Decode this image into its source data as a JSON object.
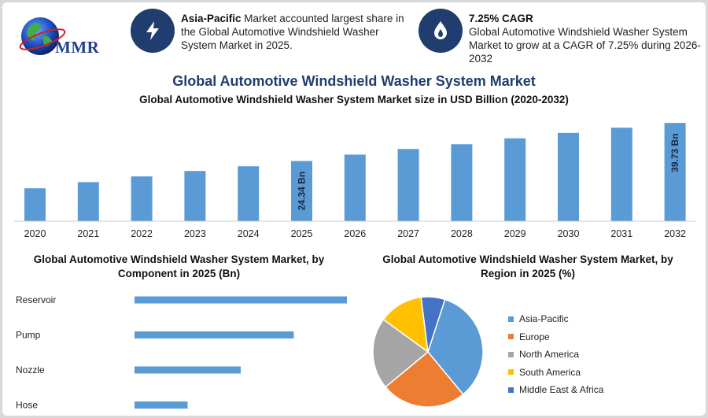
{
  "logo": {
    "text": "MMR"
  },
  "info_left": {
    "bold": "Asia-Pacific",
    "text": " Market accounted largest share in the Global Automotive Windshield Washer System Market in 2025.",
    "icon": "lightning-icon"
  },
  "info_right": {
    "bold": "7.25% CAGR",
    "text": "Global Automotive Windshield Washer System Market to grow at a CAGR of 7.25% during 2026-2032",
    "icon": "flame-drop-icon"
  },
  "colors": {
    "bar": "#5b9bd5",
    "navy": "#1f3d6e"
  },
  "chart_data": [
    {
      "type": "bar",
      "title": "Global Automotive Windshield Washer System Market",
      "subtitle": "Global Automotive Windshield Washer System Market size in USD Billion (2020-2032)",
      "categories": [
        "2020",
        "2021",
        "2022",
        "2023",
        "2024",
        "2025",
        "2026",
        "2027",
        "2028",
        "2029",
        "2030",
        "2031",
        "2032"
      ],
      "values": [
        13.3,
        15.8,
        18.1,
        20.3,
        22.2,
        24.34,
        26.9,
        29.2,
        31.1,
        33.5,
        35.7,
        37.8,
        39.73
      ],
      "data_labels": {
        "2025": "24.34 Bn",
        "2032": "39.73 Bn"
      },
      "ylim": [
        0,
        42
      ]
    },
    {
      "type": "bar",
      "orientation": "horizontal",
      "title": "Global Automotive Windshield Washer System Market, by Component in 2025 (Bn)",
      "categories": [
        "Reservoir",
        "Pump",
        "Nozzle",
        "Hose"
      ],
      "values": [
        10.0,
        7.5,
        5.0,
        2.5
      ],
      "xlim": [
        0,
        10
      ]
    },
    {
      "type": "pie",
      "title": "Global Automotive Windshield Washer System Market, by Region in 2025 (%)",
      "categories": [
        "Asia-Pacific",
        "Europe",
        "North America",
        "South America",
        "Middle East & Africa"
      ],
      "values": [
        34,
        25,
        21,
        13,
        7
      ],
      "colors": [
        "#5b9bd5",
        "#ed7d31",
        "#a5a5a5",
        "#ffc000",
        "#4472c4"
      ],
      "legend": "right"
    }
  ]
}
